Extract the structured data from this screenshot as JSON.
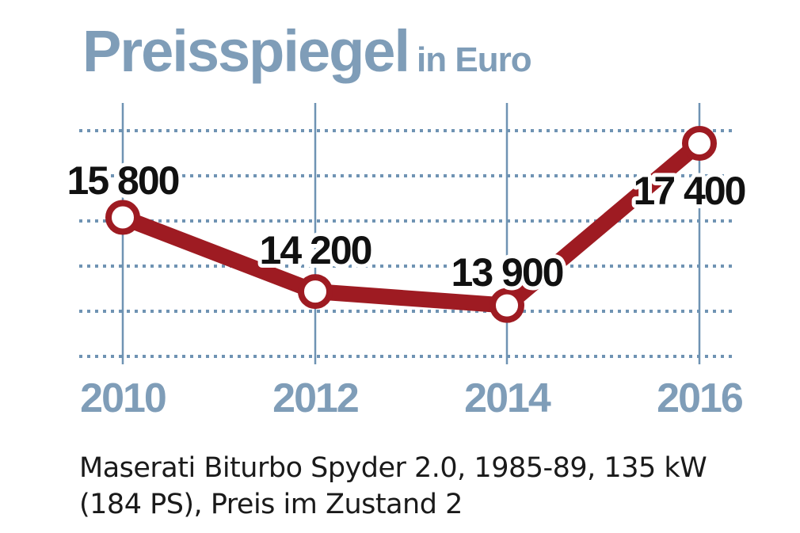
{
  "header": {
    "title": "Preisspiegel",
    "unit": "in Euro"
  },
  "chart_data": {
    "type": "line",
    "title": "Preisspiegel",
    "subtitle": "in Euro",
    "x": [
      "2010",
      "2012",
      "2014",
      "2016"
    ],
    "series": [
      {
        "values": [
          15800,
          14200,
          13900,
          17400
        ],
        "labels": [
          "15 800",
          "14 200",
          "13 900",
          "17 400"
        ]
      }
    ],
    "ylim": [
      12800,
      18100
    ],
    "grid": true,
    "colors": {
      "line": "#9e1b22",
      "grid": "#6f93b3",
      "axis_labels": "#7f9db8",
      "title": "#7f9db8"
    }
  },
  "caption": {
    "line1": "Maserati Biturbo Spyder 2.0, 1985-89, 135 kW",
    "line2": "(184 PS), Preis im Zustand 2"
  }
}
